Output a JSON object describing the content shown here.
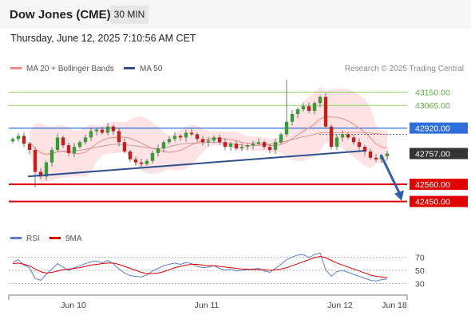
{
  "header": {
    "instrument": "Dow Jones (CME)",
    "timeframe": "30 MIN",
    "datetime": "Thursday, June 12, 2025 7:10:56 AM CET"
  },
  "legend": {
    "ma20_label": "MA 20 + Bollinger Bands",
    "ma20_color": "#f08a8a",
    "ma50_label": "MA 50",
    "ma50_color": "#2f4f8f",
    "credit": "Research © 2025 Trading Central"
  },
  "rsi_legend": {
    "rsi_label": "RSI",
    "rsi_color": "#5b7fd6",
    "ma_label": "9MA",
    "ma_color": "#e00000"
  },
  "chart_data": {
    "type": "candlestick",
    "ylim": [
      42300,
      43250
    ],
    "levels": [
      {
        "label": "43150.00",
        "value": 43150,
        "kind": "resistance",
        "color": "#8fce68"
      },
      {
        "label": "43065.00",
        "value": 43065,
        "kind": "resistance",
        "color": "#8fce68"
      },
      {
        "label": "42920.00",
        "value": 42920,
        "kind": "pivot",
        "color": "#2e6fdc"
      },
      {
        "label": "42757.00",
        "value": 42757,
        "kind": "last",
        "color": "#333333"
      },
      {
        "label": "42560.00",
        "value": 42560,
        "kind": "support",
        "color": "#e00000"
      },
      {
        "label": "42450.00",
        "value": 42450,
        "kind": "support",
        "color": "#e00000"
      }
    ],
    "close": [
      42850,
      42870,
      42820,
      42780,
      42640,
      42610,
      42700,
      42780,
      42860,
      42810,
      42760,
      42800,
      42830,
      42860,
      42900,
      42910,
      42890,
      42930,
      42900,
      42830,
      42770,
      42720,
      42700,
      42690,
      42710,
      42760,
      42790,
      42830,
      42850,
      42870,
      42860,
      42890,
      42880,
      42850,
      42830,
      42840,
      42860,
      42830,
      42800,
      42820,
      42790,
      42800,
      42810,
      42820,
      42830,
      42800,
      42780,
      42830,
      42880,
      42960,
      43010,
      43040,
      43060,
      43030,
      43080,
      43120,
      42930,
      42800,
      42860,
      42880,
      42860,
      42830,
      42800,
      42770,
      42730,
      42720,
      42740,
      42757
    ],
    "trendline": {
      "start": [
        0,
        42610
      ],
      "end": [
        63,
        42775
      ]
    },
    "forecast_arrow": {
      "from": 42750,
      "to": 42455
    },
    "x_ticks": [
      {
        "label": "Jun 10",
        "index": 8
      },
      {
        "label": "Jun 11",
        "index": 28
      },
      {
        "label": "Jun 12",
        "index": 56
      },
      {
        "label": "Jun 18",
        "index": 66
      }
    ],
    "rsi": {
      "ylim": [
        20,
        80
      ],
      "ticks": [
        70,
        50,
        30
      ],
      "values": [
        62,
        66,
        58,
        54,
        38,
        35,
        44,
        52,
        60,
        55,
        50,
        54,
        57,
        60,
        63,
        64,
        61,
        65,
        60,
        52,
        46,
        42,
        41,
        40,
        43,
        49,
        53,
        57,
        59,
        61,
        59,
        62,
        60,
        56,
        54,
        55,
        57,
        53,
        50,
        52,
        49,
        50,
        51,
        52,
        53,
        49,
        47,
        53,
        59,
        66,
        70,
        73,
        74,
        69,
        74,
        76,
        51,
        41,
        48,
        50,
        47,
        44,
        41,
        38,
        35,
        34,
        36,
        37
      ],
      "ma": [
        60,
        61,
        59,
        57,
        52,
        48,
        46,
        47,
        49,
        51,
        52,
        53,
        54,
        56,
        58,
        59,
        60,
        61,
        61,
        59,
        56,
        53,
        50,
        47,
        45,
        45,
        46,
        48,
        51,
        54,
        56,
        58,
        59,
        59,
        58,
        57,
        57,
        56,
        55,
        54,
        53,
        52,
        52,
        51,
        51,
        51,
        50,
        51,
        52,
        54,
        57,
        60,
        63,
        66,
        69,
        71,
        69,
        65,
        61,
        58,
        55,
        52,
        49,
        46,
        43,
        41,
        40,
        39
      ]
    }
  }
}
